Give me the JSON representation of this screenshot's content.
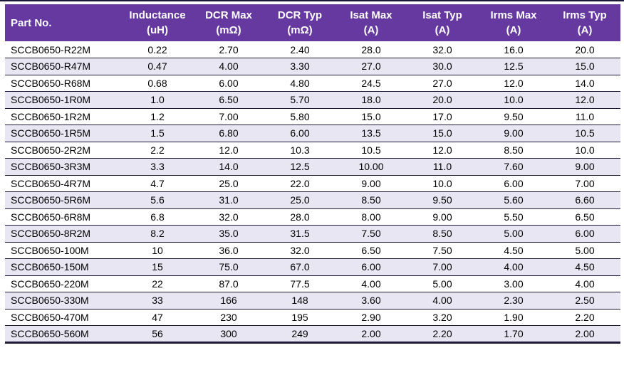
{
  "colors": {
    "header_bg": "#6539A0",
    "header_text": "#ffffff",
    "stripe_bg": "#E8E6F3",
    "row_bg": "#ffffff",
    "border": "#1c1838",
    "body_text": "#000000"
  },
  "table": {
    "columns": [
      {
        "id": "part-no",
        "line1": "Part No.",
        "line2": ""
      },
      {
        "id": "inductance",
        "line1": "Inductance",
        "line2": "(uH)"
      },
      {
        "id": "dcr-max",
        "line1": "DCR Max",
        "line2": "(mΩ)"
      },
      {
        "id": "dcr-typ",
        "line1": "DCR Typ",
        "line2": "(mΩ)"
      },
      {
        "id": "isat-max",
        "line1": "Isat Max",
        "line2": "(A)"
      },
      {
        "id": "isat-typ",
        "line1": "Isat Typ",
        "line2": "(A)"
      },
      {
        "id": "irms-max",
        "line1": "Irms Max",
        "line2": "(A)"
      },
      {
        "id": "irms-typ",
        "line1": "Irms Typ",
        "line2": "(A)"
      }
    ],
    "rows": [
      [
        "SCCB0650-R22M",
        "0.22",
        "2.70",
        "2.40",
        "28.0",
        "32.0",
        "16.0",
        "20.0"
      ],
      [
        "SCCB0650-R47M",
        "0.47",
        "4.00",
        "3.30",
        "27.0",
        "30.0",
        "12.5",
        "15.0"
      ],
      [
        "SCCB0650-R68M",
        "0.68",
        "6.00",
        "4.80",
        "24.5",
        "27.0",
        "12.0",
        "14.0"
      ],
      [
        "SCCB0650-1R0M",
        "1.0",
        "6.50",
        "5.70",
        "18.0",
        "20.0",
        "10.0",
        "12.0"
      ],
      [
        "SCCB0650-1R2M",
        "1.2",
        "7.00",
        "5.80",
        "15.0",
        "17.0",
        "9.50",
        "11.0"
      ],
      [
        "SCCB0650-1R5M",
        "1.5",
        "6.80",
        "6.00",
        "13.5",
        "15.0",
        "9.00",
        "10.5"
      ],
      [
        "SCCB0650-2R2M",
        "2.2",
        "12.0",
        "10.3",
        "10.5",
        "12.0",
        "8.50",
        "10.0"
      ],
      [
        "SCCB0650-3R3M",
        "3.3",
        "14.0",
        "12.5",
        "10.00",
        "11.0",
        "7.60",
        "9.00"
      ],
      [
        "SCCB0650-4R7M",
        "4.7",
        "25.0",
        "22.0",
        "9.00",
        "10.0",
        "6.00",
        "7.00"
      ],
      [
        "SCCB0650-5R6M",
        "5.6",
        "31.0",
        "25.0",
        "8.50",
        "9.50",
        "5.60",
        "6.60"
      ],
      [
        "SCCB0650-6R8M",
        "6.8",
        "32.0",
        "28.0",
        "8.00",
        "9.00",
        "5.50",
        "6.50"
      ],
      [
        "SCCB0650-8R2M",
        "8.2",
        "35.0",
        "31.5",
        "7.50",
        "8.50",
        "5.00",
        "6.00"
      ],
      [
        "SCCB0650-100M",
        "10",
        "36.0",
        "32.0",
        "6.50",
        "7.50",
        "4.50",
        "5.00"
      ],
      [
        "SCCB0650-150M",
        "15",
        "75.0",
        "67.0",
        "6.00",
        "7.00",
        "4.00",
        "4.50"
      ],
      [
        "SCCB0650-220M",
        "22",
        "87.0",
        "77.5",
        "4.00",
        "5.00",
        "3.00",
        "4.00"
      ],
      [
        "SCCB0650-330M",
        "33",
        "166",
        "148",
        "3.60",
        "4.00",
        "2.30",
        "2.50"
      ],
      [
        "SCCB0650-470M",
        "47",
        "230",
        "195",
        "2.90",
        "3.20",
        "1.90",
        "2.20"
      ],
      [
        "SCCB0650-560M",
        "56",
        "300",
        "249",
        "2.00",
        "2.20",
        "1.70",
        "2.00"
      ]
    ]
  }
}
